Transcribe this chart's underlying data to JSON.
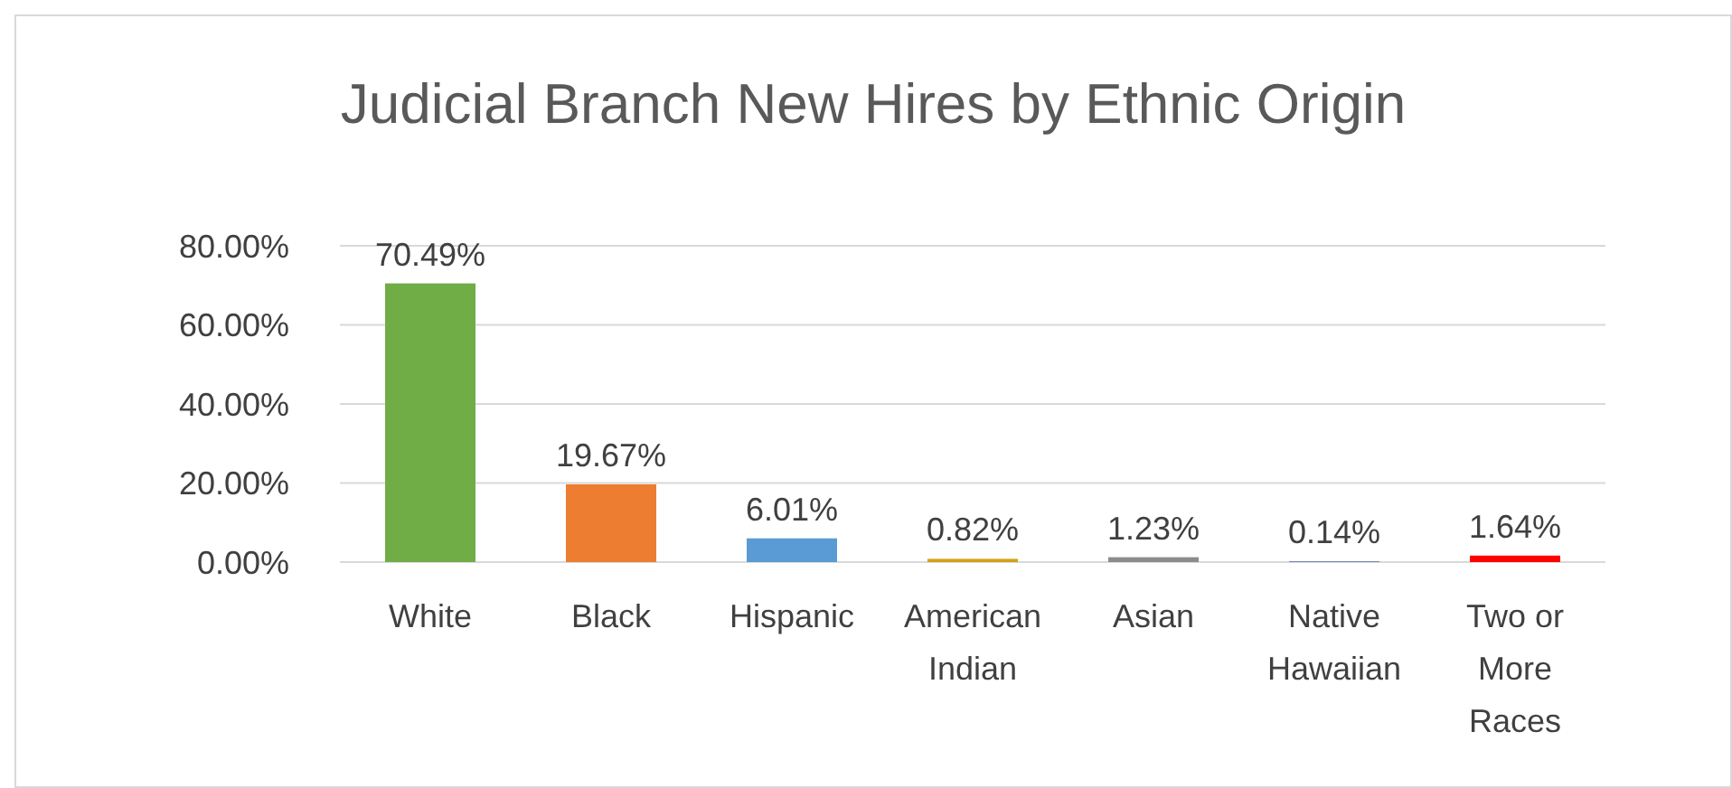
{
  "chart_data": {
    "type": "bar",
    "title": "Judicial Branch New Hires by Ethnic Origin",
    "categories": [
      "White",
      "Black",
      "Hispanic",
      "American Indian",
      "Asian",
      "Native Hawaiian",
      "Two or More Races"
    ],
    "values": [
      70.49,
      19.67,
      6.01,
      0.82,
      1.23,
      0.14,
      1.64
    ],
    "colors": [
      "#70ad47",
      "#ed7d31",
      "#5b9bd5",
      "#d4a017",
      "#8c8c8c",
      "#2f5597",
      "#ff0000"
    ],
    "value_labels": [
      "70.49%",
      "19.67%",
      "6.01%",
      "0.82%",
      "1.23%",
      "0.14%",
      "1.64%"
    ],
    "ylim": [
      0,
      80
    ],
    "yticks": [
      {
        "value": 0,
        "label": "0.00%"
      },
      {
        "value": 20,
        "label": "20.00%"
      },
      {
        "value": 40,
        "label": "40.00%"
      },
      {
        "value": 60,
        "label": "60.00%"
      },
      {
        "value": 80,
        "label": "80.00%"
      }
    ],
    "grid": "y"
  }
}
